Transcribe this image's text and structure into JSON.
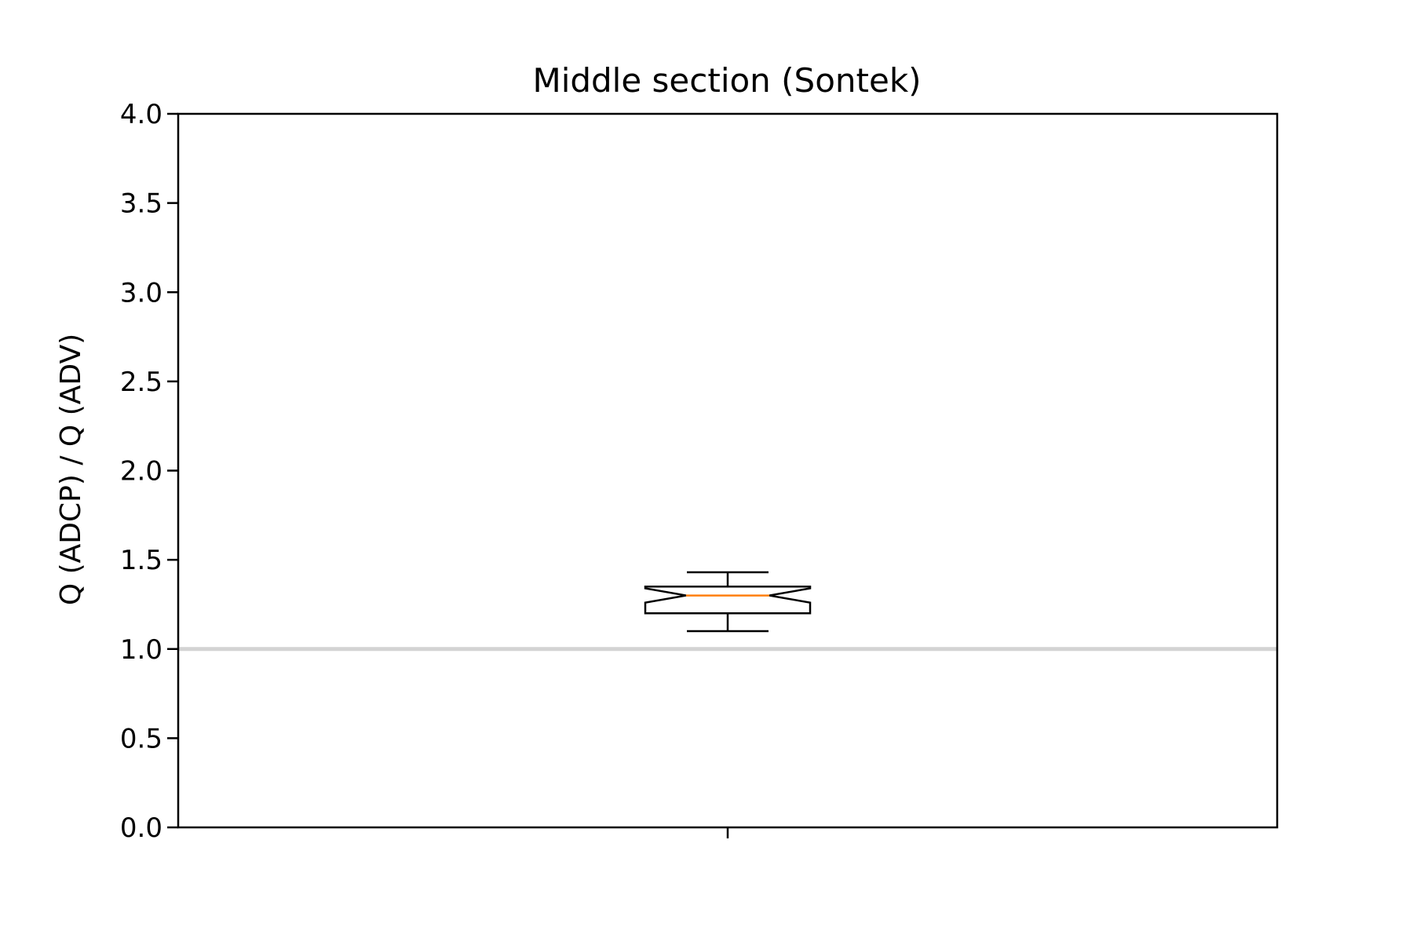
{
  "chart_data": {
    "type": "box",
    "title": "Middle section (Sontek)",
    "xlabel": "",
    "ylabel": "Q (ADCP) / Q (ADV)",
    "ylim": [
      0,
      4
    ],
    "yticks": [
      "0.0",
      "0.5",
      "1.0",
      "1.5",
      "2.0",
      "2.5",
      "3.0",
      "3.5",
      "4.0"
    ],
    "xticks": [
      ""
    ],
    "notched": true,
    "boxes": [
      {
        "whisker_low": 1.1,
        "q1": 1.2,
        "notch_low": 1.26,
        "median": 1.3,
        "notch_high": 1.34,
        "q3": 1.35,
        "whisker_high": 1.43
      }
    ],
    "reference_line": {
      "y": 1.0,
      "color": "#d3d3d3"
    },
    "grid": false,
    "colors": {
      "box": "#000000",
      "median": "#ff7f0e",
      "axes": "#000000"
    }
  }
}
